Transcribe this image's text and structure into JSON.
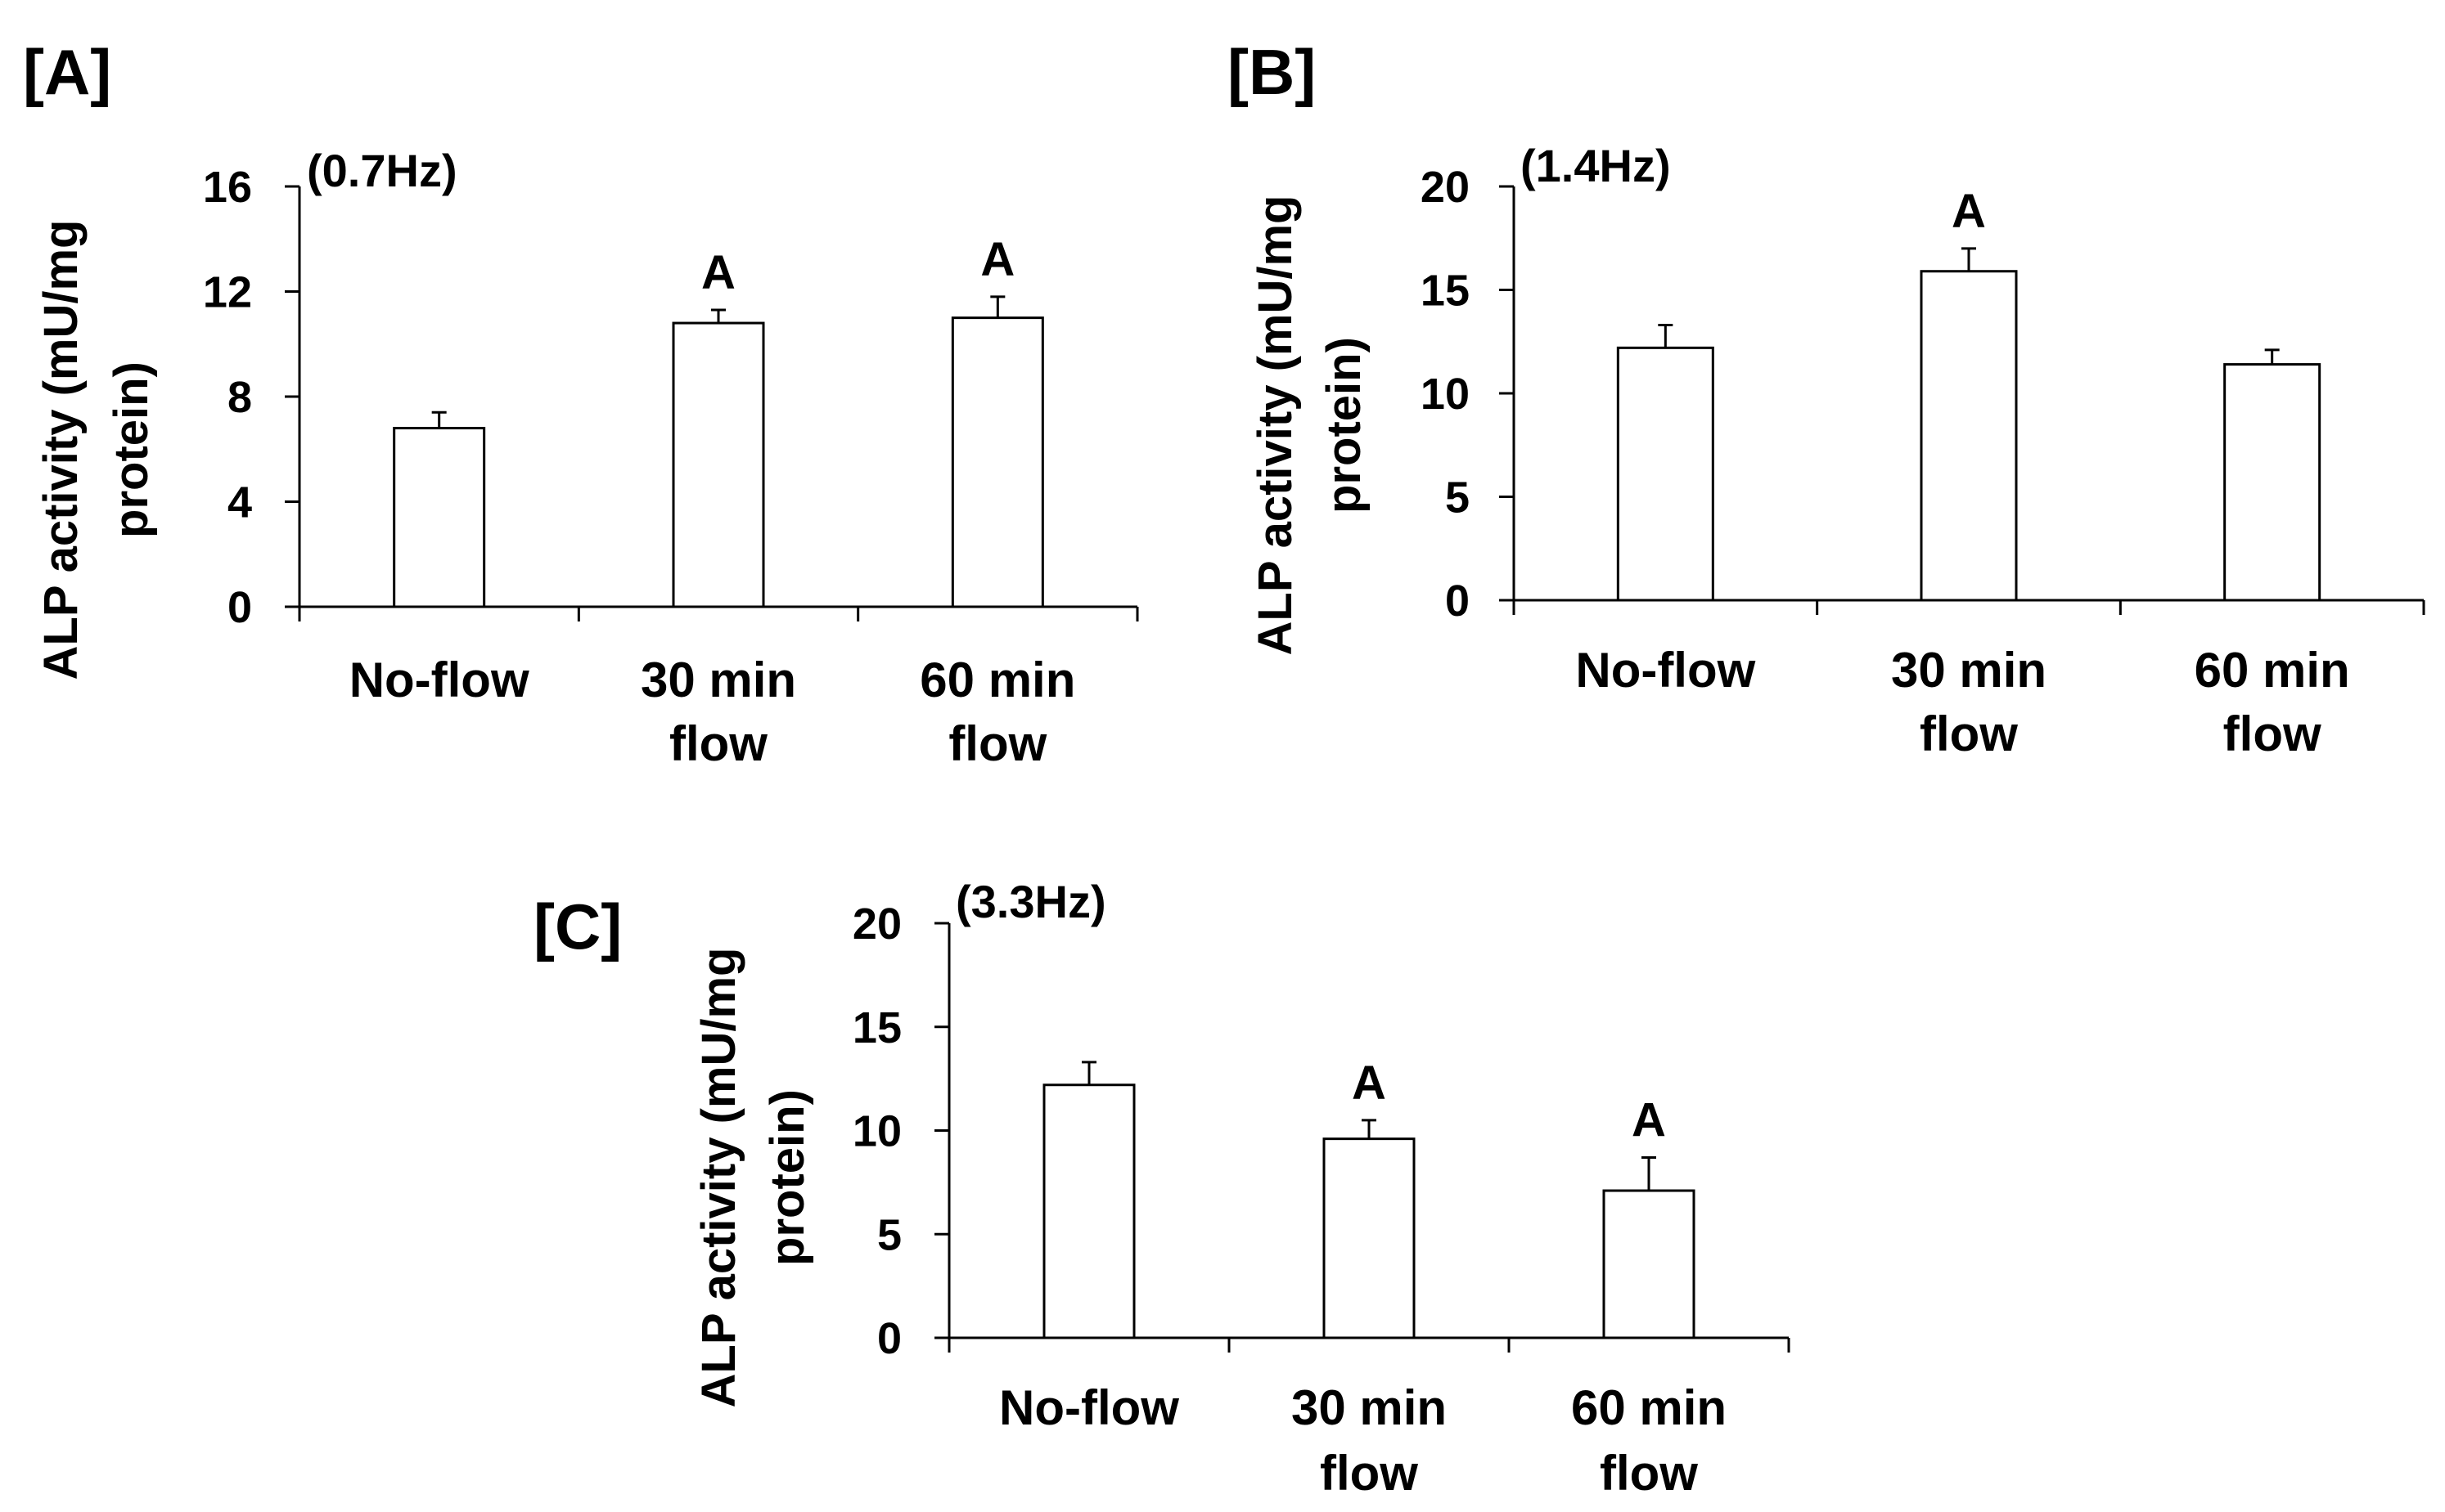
{
  "figure": {
    "colors": {
      "bar_fill": "#ffffff",
      "stroke": "#000000",
      "background": "#ffffff"
    }
  },
  "chart_data": [
    {
      "type": "bar",
      "panel": "[A]",
      "title": "(0.7Hz)",
      "ylabel": [
        "ALP activity (mU/mg",
        "protein)"
      ],
      "xlabel": "",
      "categories": [
        [
          "No-flow"
        ],
        [
          "30 min",
          "flow"
        ],
        [
          "60 min",
          "flow"
        ]
      ],
      "values": [
        6.8,
        10.8,
        11.0
      ],
      "errors": [
        0.6,
        0.5,
        0.8
      ],
      "annotations": [
        "",
        "A",
        "A"
      ],
      "ylim": [
        0,
        16
      ],
      "yticks": [
        0,
        4,
        8,
        12,
        16
      ],
      "grid": false,
      "legend": "none"
    },
    {
      "type": "bar",
      "panel": "[B]",
      "title": "(1.4Hz)",
      "ylabel": [
        "ALP activity (mU/mg",
        "protein)"
      ],
      "xlabel": "",
      "categories": [
        [
          "No-flow"
        ],
        [
          "30 min",
          "flow"
        ],
        [
          "60 min",
          "flow"
        ]
      ],
      "values": [
        12.2,
        15.9,
        11.4
      ],
      "errors": [
        1.1,
        1.1,
        0.7
      ],
      "annotations": [
        "",
        "A",
        ""
      ],
      "ylim": [
        0,
        20
      ],
      "yticks": [
        0,
        5,
        10,
        15,
        20
      ],
      "grid": false,
      "legend": "none"
    },
    {
      "type": "bar",
      "panel": "[C]",
      "title": "(3.3Hz)",
      "ylabel": [
        "ALP activity (mU/mg",
        "protein)"
      ],
      "xlabel": "",
      "categories": [
        [
          "No-flow"
        ],
        [
          "30 min",
          "flow"
        ],
        [
          "60 min",
          "flow"
        ]
      ],
      "values": [
        12.2,
        9.6,
        7.1
      ],
      "errors": [
        1.1,
        0.9,
        1.6
      ],
      "annotations": [
        "",
        "A",
        "A"
      ],
      "ylim": [
        0,
        20
      ],
      "yticks": [
        0,
        5,
        10,
        15,
        20
      ],
      "grid": false,
      "legend": "none"
    }
  ]
}
